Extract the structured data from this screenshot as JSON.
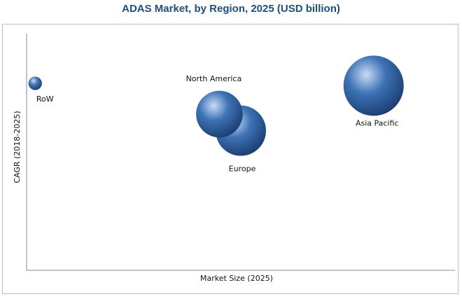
{
  "chart_data": {
    "type": "scatter",
    "title": "ADAS Market, by Region, 2025 (USD billion)",
    "xlabel": "Market Size (2025)",
    "ylabel": "CAGR (2018-2025)",
    "xlim": [
      0,
      100
    ],
    "ylim": [
      0,
      100
    ],
    "grid": false,
    "legend": "none",
    "colors": {
      "title": "#1f4e79",
      "bubble": "#3e73b5",
      "bubble_dark": "#1c3f73",
      "bubble_light": "#c8dcf5",
      "axis": "#8a8a8a"
    },
    "points": [
      {
        "label": "RoW",
        "x": 2,
        "y": 79,
        "size": 5
      },
      {
        "label": "North America",
        "x": 45,
        "y": 66,
        "size": 60
      },
      {
        "label": "Europe",
        "x": 50,
        "y": 59,
        "size": 70
      },
      {
        "label": "Asia Pacific",
        "x": 81,
        "y": 78,
        "size": 100
      }
    ]
  }
}
